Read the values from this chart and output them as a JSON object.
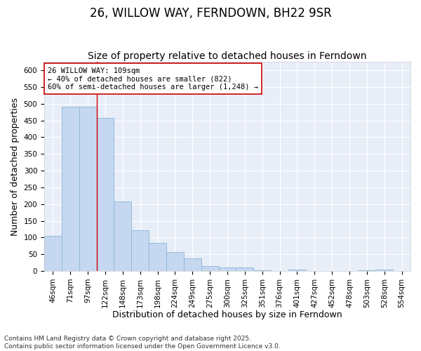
{
  "title": "26, WILLOW WAY, FERNDOWN, BH22 9SR",
  "subtitle": "Size of property relative to detached houses in Ferndown",
  "xlabel": "Distribution of detached houses by size in Ferndown",
  "ylabel": "Number of detached properties",
  "footnote": "Contains HM Land Registry data © Crown copyright and database right 2025.\nContains public sector information licensed under the Open Government Licence v3.0.",
  "categories": [
    "46sqm",
    "71sqm",
    "97sqm",
    "122sqm",
    "148sqm",
    "173sqm",
    "198sqm",
    "224sqm",
    "249sqm",
    "275sqm",
    "300sqm",
    "325sqm",
    "351sqm",
    "376sqm",
    "401sqm",
    "427sqm",
    "452sqm",
    "478sqm",
    "503sqm",
    "528sqm",
    "554sqm"
  ],
  "values": [
    105,
    490,
    490,
    457,
    207,
    122,
    83,
    57,
    38,
    15,
    10,
    11,
    2,
    0,
    5,
    0,
    0,
    0,
    2,
    4,
    0
  ],
  "bar_color": "#c5d8f0",
  "bar_edge_color": "#8ab4d8",
  "vline_x": 2.5,
  "vline_color": "#cc0000",
  "annotation_text": "26 WILLOW WAY: 109sqm\n← 40% of detached houses are smaller (822)\n60% of semi-detached houses are larger (1,248) →",
  "annotation_box_color": "#ffffff",
  "annotation_box_edge_color": "#cc0000",
  "ylim": [
    0,
    625
  ],
  "yticks": [
    0,
    50,
    100,
    150,
    200,
    250,
    300,
    350,
    400,
    450,
    500,
    550,
    600
  ],
  "background_color": "#ffffff",
  "axes_background": "#e8eef8",
  "grid_color": "#ffffff",
  "title_fontsize": 12,
  "subtitle_fontsize": 10,
  "axis_label_fontsize": 9,
  "tick_fontsize": 7.5,
  "annotation_fontsize": 7.5,
  "footnote_fontsize": 6.5
}
